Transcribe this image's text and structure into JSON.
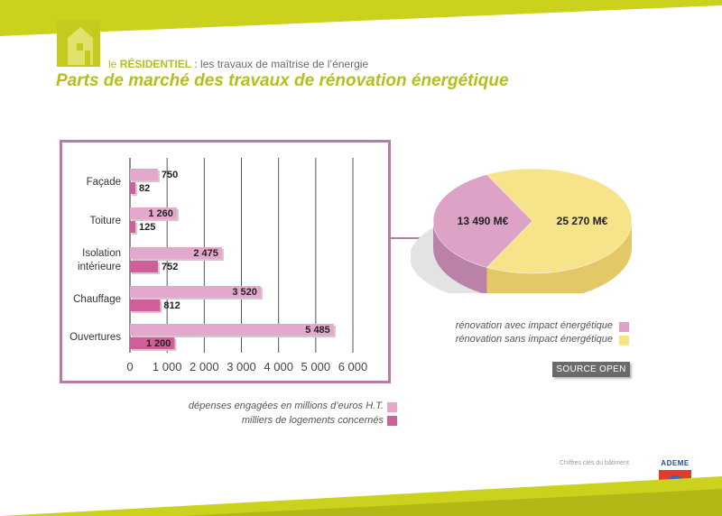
{
  "header": {
    "subtitle_prefix": "le ",
    "subtitle_strong": "RÉSIDENTIEL",
    "subtitle_rest": " : les travaux de maîtrise de l’énergie",
    "title": "Parts de marché des travaux de rénovation énergétique"
  },
  "colors": {
    "accent": "#b5be1a",
    "frame": "#b97aa6",
    "series_spend": "#e4a8cc",
    "series_homes": "#cf5f99",
    "pie_with_impact": "#dda3c7",
    "pie_without_impact": "#f7e38a"
  },
  "chart_data": [
    {
      "type": "bar",
      "orientation": "horizontal",
      "categories": [
        "Façade",
        "Toiture",
        "Isolation intérieure",
        "Chauffage",
        "Ouvertures"
      ],
      "series": [
        {
          "name": "dépenses engagées en millions d’euros H.T.",
          "values": [
            750,
            1260,
            2475,
            3520,
            5485
          ]
        },
        {
          "name": "milliers de logements concernés",
          "values": [
            82,
            125,
            752,
            812,
            1200
          ]
        }
      ],
      "value_labels": [
        [
          "750",
          "1 260",
          "2 475",
          "3 520",
          "5 485"
        ],
        [
          "82",
          "125",
          "752",
          "812",
          "1 200"
        ]
      ],
      "xlim": [
        0,
        6000
      ],
      "xticks": [
        0,
        1000,
        2000,
        3000,
        4000,
        5000,
        6000
      ],
      "xtick_labels": [
        "0",
        "1 000",
        "2 000",
        "3 000",
        "4 000",
        "5 000",
        "6 000"
      ],
      "grid": true,
      "legend_position": "bottom"
    },
    {
      "type": "pie",
      "labels": [
        "rénovation avec impact énergétique",
        "rénovation sans impact énergétique"
      ],
      "values": [
        13490,
        25270
      ],
      "value_labels": [
        "13 490 M€",
        "25 270 M€"
      ],
      "style": "3d",
      "legend_position": "bottom-right"
    }
  ],
  "source_button": "SOURCE OPEN",
  "footer": {
    "text": "Chiffres clés du bâtiment",
    "logo_text": "ADEME"
  }
}
